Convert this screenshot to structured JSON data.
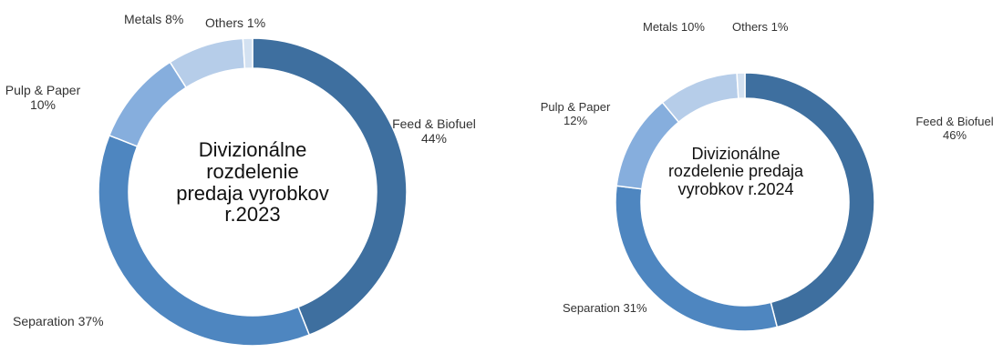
{
  "chart_data": [
    {
      "type": "pie",
      "title": "Divizionálne rozdelenie predaja vyrobkov r.2023",
      "title_lines": [
        "Divizionálne",
        "rozdelenie",
        "predaja vyrobkov",
        "r.2023"
      ],
      "slices": [
        {
          "label": "Feed & Biofuel",
          "value": 44,
          "text": "44%",
          "color": "#3e6f9f"
        },
        {
          "label": "Separation",
          "value": 37,
          "text": "37%",
          "color": "#4e86c0"
        },
        {
          "label": "Pulp & Paper",
          "value": 10,
          "text": "10%",
          "color": "#86aedd"
        },
        {
          "label": "Metals",
          "value": 8,
          "text": "8%",
          "color": "#b6cde9"
        },
        {
          "label": "Others",
          "value": 1,
          "text": "1%",
          "color": "#d3e1f1"
        }
      ]
    },
    {
      "type": "pie",
      "title": "Divizionálne rozdelenie predaja vyrobkov r.2024",
      "title_lines": [
        "Divizionálne",
        "rozdelenie predaja",
        "vyrobkov r.2024"
      ],
      "slices": [
        {
          "label": "Feed & Biofuel",
          "value": 46,
          "text": "46%",
          "color": "#3e6f9f"
        },
        {
          "label": "Separation",
          "value": 31,
          "text": "31%",
          "color": "#4e86c0"
        },
        {
          "label": "Pulp & Paper",
          "value": 12,
          "text": "12%",
          "color": "#86aedd"
        },
        {
          "label": "Metals",
          "value": 10,
          "text": "10%",
          "color": "#b6cde9"
        },
        {
          "label": "Others",
          "value": 1,
          "text": "1%",
          "color": "#d3e1f1"
        }
      ]
    }
  ]
}
